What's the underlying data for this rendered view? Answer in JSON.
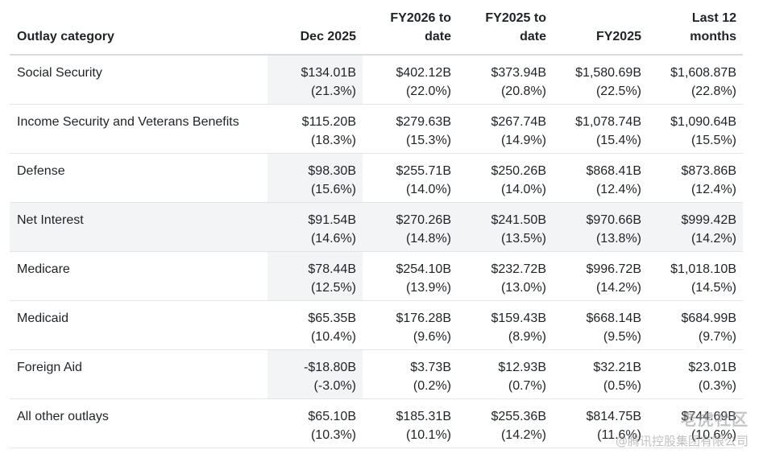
{
  "headers": [
    "Outlay category",
    "Dec 2025",
    "FY2026 to date",
    "FY2025 to date",
    "FY2025",
    "Last 12 months"
  ],
  "rows": [
    {
      "category": "Social Security",
      "cells": [
        [
          "$134.01B",
          "(21.3%)"
        ],
        [
          "$402.12B",
          "(22.0%)"
        ],
        [
          "$373.94B",
          "(20.8%)"
        ],
        [
          "$1,580.69B",
          "(22.5%)"
        ],
        [
          "$1,608.87B",
          "(22.8%)"
        ]
      ]
    },
    {
      "category": "Income Security and Veterans Benefits",
      "cells": [
        [
          "$115.20B",
          "(18.3%)"
        ],
        [
          "$279.63B",
          "(15.3%)"
        ],
        [
          "$267.74B",
          "(14.9%)"
        ],
        [
          "$1,078.74B",
          "(15.4%)"
        ],
        [
          "$1,090.64B",
          "(15.5%)"
        ]
      ]
    },
    {
      "category": "Defense",
      "cells": [
        [
          "$98.30B",
          "(15.6%)"
        ],
        [
          "$255.71B",
          "(14.0%)"
        ],
        [
          "$250.26B",
          "(14.0%)"
        ],
        [
          "$868.41B",
          "(12.4%)"
        ],
        [
          "$873.86B",
          "(12.4%)"
        ]
      ]
    },
    {
      "category": "Net Interest",
      "cells": [
        [
          "$91.54B",
          "(14.6%)"
        ],
        [
          "$270.26B",
          "(14.8%)"
        ],
        [
          "$241.50B",
          "(13.5%)"
        ],
        [
          "$970.66B",
          "(13.8%)"
        ],
        [
          "$999.42B",
          "(14.2%)"
        ]
      ]
    },
    {
      "category": "Medicare",
      "cells": [
        [
          "$78.44B",
          "(12.5%)"
        ],
        [
          "$254.10B",
          "(13.9%)"
        ],
        [
          "$232.72B",
          "(13.0%)"
        ],
        [
          "$996.72B",
          "(14.2%)"
        ],
        [
          "$1,018.10B",
          "(14.5%)"
        ]
      ]
    },
    {
      "category": "Medicaid",
      "cells": [
        [
          "$65.35B",
          "(10.4%)"
        ],
        [
          "$176.28B",
          "(9.6%)"
        ],
        [
          "$159.43B",
          "(8.9%)"
        ],
        [
          "$668.14B",
          "(9.5%)"
        ],
        [
          "$684.99B",
          "(9.7%)"
        ]
      ]
    },
    {
      "category": "Foreign Aid",
      "cells": [
        [
          "-$18.80B",
          "(-3.0%)"
        ],
        [
          "$3.73B",
          "(0.2%)"
        ],
        [
          "$12.93B",
          "(0.7%)"
        ],
        [
          "$32.21B",
          "(0.5%)"
        ],
        [
          "$23.01B",
          "(0.3%)"
        ]
      ]
    },
    {
      "category": "All other outlays",
      "cells": [
        [
          "$65.10B",
          "(10.3%)"
        ],
        [
          "$185.31B",
          "(10.1%)"
        ],
        [
          "$255.36B",
          "(14.2%)"
        ],
        [
          "$814.75B",
          "(11.6%)"
        ],
        [
          "$744.69B",
          "(10.6%)"
        ]
      ]
    }
  ],
  "watermark": {
    "line1": "老虎社区",
    "line2": "@腾讯控股集团有限公司"
  }
}
